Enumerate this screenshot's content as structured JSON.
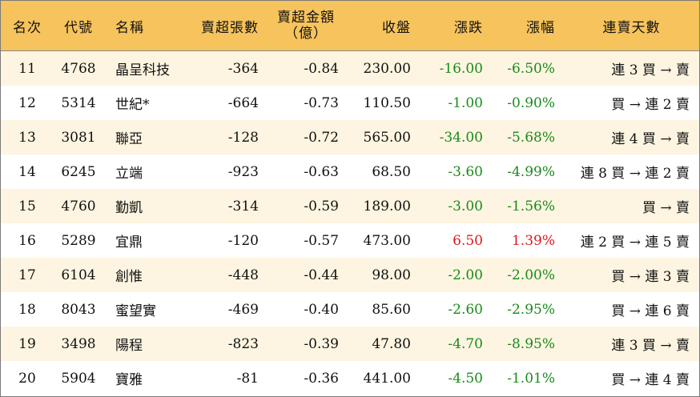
{
  "header": {
    "rank": "名次",
    "code": "代號",
    "name": "名稱",
    "sell_volume": "賣超張數",
    "sell_amount_line1": "賣超金額",
    "sell_amount_line2": "（億）",
    "close": "收盤",
    "change": "漲跌",
    "change_pct": "漲幅",
    "streak": "連賣天數"
  },
  "colors": {
    "header_bg": "#f6c35c",
    "stripe_bg": "#fdf5e1",
    "down": "#1b8a1b",
    "up": "#e0181f"
  },
  "rows": [
    {
      "rank": "11",
      "code": "4768",
      "name": "晶呈科技",
      "vol": "-364",
      "amt": "-0.84",
      "close": "230.00",
      "chg": "-16.00",
      "pct": "-6.50%",
      "dir": "down",
      "streak": "連 3 買 → 賣"
    },
    {
      "rank": "12",
      "code": "5314",
      "name": "世紀*",
      "vol": "-664",
      "amt": "-0.73",
      "close": "110.50",
      "chg": "-1.00",
      "pct": "-0.90%",
      "dir": "down",
      "streak": "買 → 連 2 賣"
    },
    {
      "rank": "13",
      "code": "3081",
      "name": "聯亞",
      "vol": "-128",
      "amt": "-0.72",
      "close": "565.00",
      "chg": "-34.00",
      "pct": "-5.68%",
      "dir": "down",
      "streak": "連 4 買 → 賣"
    },
    {
      "rank": "14",
      "code": "6245",
      "name": "立端",
      "vol": "-923",
      "amt": "-0.63",
      "close": "68.50",
      "chg": "-3.60",
      "pct": "-4.99%",
      "dir": "down",
      "streak": "連 8 買 → 連 2 賣"
    },
    {
      "rank": "15",
      "code": "4760",
      "name": "勤凱",
      "vol": "-314",
      "amt": "-0.59",
      "close": "189.00",
      "chg": "-3.00",
      "pct": "-1.56%",
      "dir": "down",
      "streak": "買 → 賣"
    },
    {
      "rank": "16",
      "code": "5289",
      "name": "宜鼎",
      "vol": "-120",
      "amt": "-0.57",
      "close": "473.00",
      "chg": "6.50",
      "pct": "1.39%",
      "dir": "up",
      "streak": "連 2 買 → 連 5 賣"
    },
    {
      "rank": "17",
      "code": "6104",
      "name": "創惟",
      "vol": "-448",
      "amt": "-0.44",
      "close": "98.00",
      "chg": "-2.00",
      "pct": "-2.00%",
      "dir": "down",
      "streak": "買 → 連 3 賣"
    },
    {
      "rank": "18",
      "code": "8043",
      "name": "蜜望實",
      "vol": "-469",
      "amt": "-0.40",
      "close": "85.60",
      "chg": "-2.60",
      "pct": "-2.95%",
      "dir": "down",
      "streak": "買 → 連 6 賣"
    },
    {
      "rank": "19",
      "code": "3498",
      "name": "陽程",
      "vol": "-823",
      "amt": "-0.39",
      "close": "47.80",
      "chg": "-4.70",
      "pct": "-8.95%",
      "dir": "down",
      "streak": "連 3 買 → 賣"
    },
    {
      "rank": "20",
      "code": "5904",
      "name": "寶雅",
      "vol": "-81",
      "amt": "-0.36",
      "close": "441.00",
      "chg": "-4.50",
      "pct": "-1.01%",
      "dir": "down",
      "streak": "買 → 連 4 賣"
    }
  ]
}
